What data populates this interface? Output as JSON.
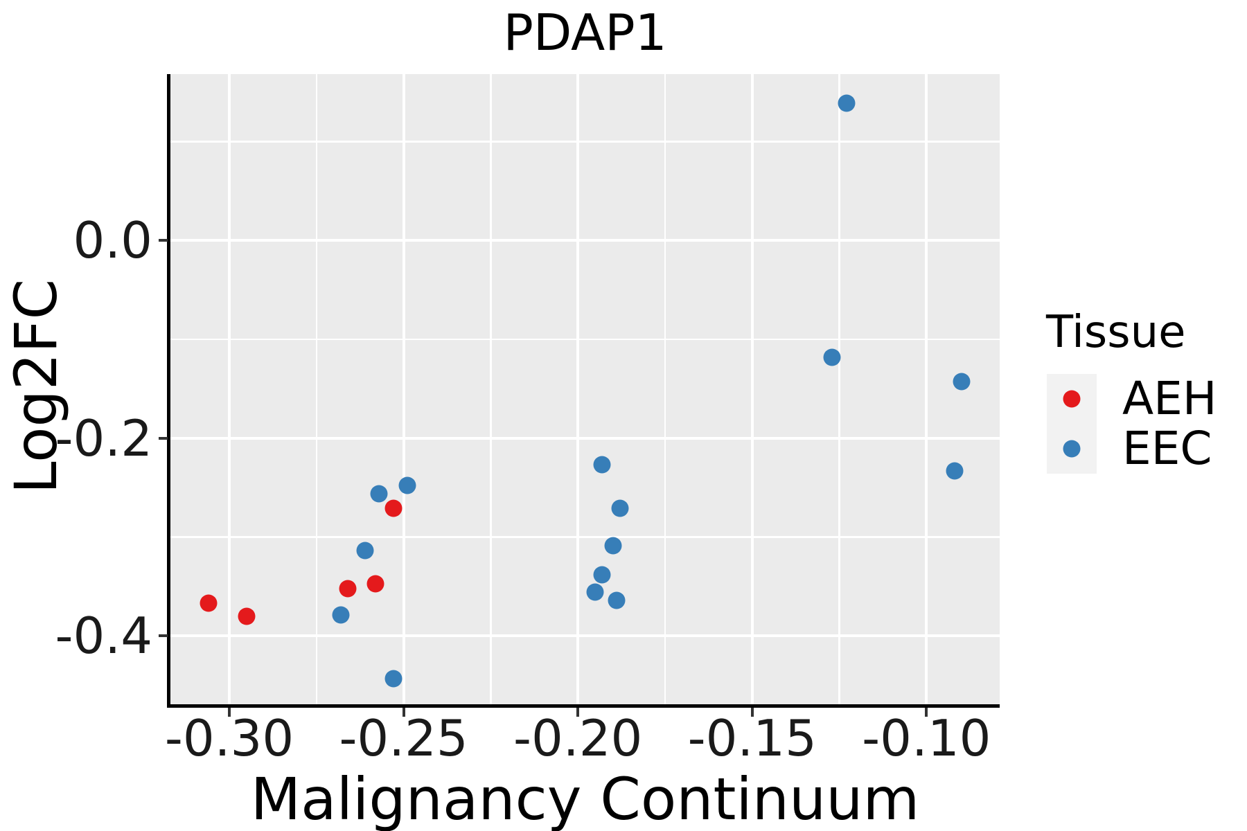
{
  "figure": {
    "background": "#FFFFFF",
    "panel_background": "#EBEBEB",
    "gridline_color": "#FFFFFF",
    "spine_color": "#000000",
    "tick_color": "#333333",
    "tick_label_color": "#1a1a1a",
    "legend_key_background": "#F2F2F2"
  },
  "chart_data": {
    "type": "scatter",
    "title": "PDAP1",
    "xlabel": "Malignancy Continuum",
    "ylabel": "Log2FC",
    "xlim": [
      -0.3169,
      -0.079
    ],
    "ylim": [
      -0.4698,
      0.1681
    ],
    "grid": true,
    "x_major_ticks": [
      -0.3,
      -0.25,
      -0.2,
      -0.15,
      -0.1
    ],
    "x_tick_labels": [
      "-0.30",
      "-0.25",
      "-0.20",
      "-0.15",
      "-0.10"
    ],
    "x_minor_ticks": [
      -0.275,
      -0.225,
      -0.175,
      -0.125
    ],
    "y_major_ticks": [
      0.0,
      -0.2,
      -0.4
    ],
    "y_tick_labels": [
      "0.0",
      "-0.2",
      "-0.4"
    ],
    "y_minor_ticks": [
      0.1,
      -0.1,
      -0.3
    ],
    "legend_position": "right",
    "legend_title": "Tissue",
    "series": [
      {
        "name": "AEH",
        "color": "#E41A1C",
        "points": [
          [
            -0.306,
            -0.367
          ],
          [
            -0.295,
            -0.38
          ],
          [
            -0.253,
            -0.271
          ],
          [
            -0.258,
            -0.347
          ],
          [
            -0.266,
            -0.352
          ]
        ]
      },
      {
        "name": "EEC",
        "color": "#377EB8",
        "points": [
          [
            -0.257,
            -0.256
          ],
          [
            -0.249,
            -0.248
          ],
          [
            -0.261,
            -0.314
          ],
          [
            -0.268,
            -0.379
          ],
          [
            -0.253,
            -0.443
          ],
          [
            -0.193,
            -0.227
          ],
          [
            -0.188,
            -0.271
          ],
          [
            -0.19,
            -0.309
          ],
          [
            -0.193,
            -0.338
          ],
          [
            -0.195,
            -0.356
          ],
          [
            -0.189,
            -0.364
          ],
          [
            -0.123,
            0.139
          ],
          [
            -0.127,
            -0.118
          ],
          [
            -0.09,
            -0.143
          ],
          [
            -0.092,
            -0.233
          ]
        ]
      }
    ]
  }
}
